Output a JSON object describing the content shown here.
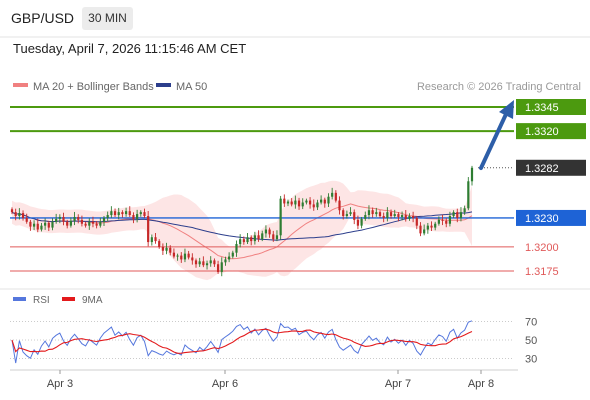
{
  "header": {
    "pair": "GBP/USD",
    "timeframe": "30 MIN",
    "datetime": "Tuesday, April 7, 2026 11:15:46 AM CET"
  },
  "legend": {
    "ma20": "MA 20 + Bollinger Bands",
    "ma50": "MA 50",
    "credit": "Research © 2026 Trading Central"
  },
  "colors": {
    "bull": "#2e7d32",
    "bear": "#c62828",
    "ma20": "#f08080",
    "ma50": "#2c3e8c",
    "bands": "#fde0e0",
    "target": "#4c9a0f",
    "pivot": "#1e63d6",
    "support": "#e05a5a",
    "current": "#333333",
    "rsi": "#5577dd",
    "rsi_ma": "#e31a1c",
    "arrow": "#2d5ea8"
  },
  "chart_data": [
    {
      "type": "candlestick",
      "title": "",
      "x_labels": [
        "Apr 3",
        "Apr 6",
        "Apr 7",
        "Apr 8"
      ],
      "ylim": [
        1.315,
        1.336
      ],
      "levels": [
        {
          "value": "1.3345",
          "kind": "target"
        },
        {
          "value": "1.3320",
          "kind": "target"
        },
        {
          "value": "1.3282",
          "kind": "current"
        },
        {
          "value": "1.3230",
          "kind": "pivot"
        },
        {
          "value": "1.3200",
          "kind": "support"
        },
        {
          "value": "1.3175",
          "kind": "support"
        }
      ],
      "closes": [
        1.3236,
        1.3232,
        1.3235,
        1.323,
        1.3226,
        1.3221,
        1.3224,
        1.3218,
        1.3222,
        1.3225,
        1.322,
        1.3226,
        1.3229,
        1.3231,
        1.3226,
        1.3222,
        1.3227,
        1.3231,
        1.3228,
        1.3224,
        1.3222,
        1.3226,
        1.3224,
        1.3222,
        1.3226,
        1.323,
        1.3233,
        1.3237,
        1.3233,
        1.3236,
        1.3234,
        1.3237,
        1.3233,
        1.3229,
        1.3234,
        1.3236,
        1.3232,
        1.3205,
        1.321,
        1.3206,
        1.32,
        1.3196,
        1.3199,
        1.3194,
        1.319,
        1.3191,
        1.3187,
        1.3193,
        1.3189,
        1.3186,
        1.3182,
        1.3185,
        1.3181,
        1.3183,
        1.3186,
        1.3182,
        1.3174,
        1.3184,
        1.3187,
        1.319,
        1.3194,
        1.3203,
        1.3208,
        1.3205,
        1.321,
        1.3206,
        1.3212,
        1.3208,
        1.3214,
        1.3218,
        1.3213,
        1.3208,
        1.3212,
        1.325,
        1.3245,
        1.3247,
        1.3244,
        1.3248,
        1.3242,
        1.3246,
        1.3248,
        1.3244,
        1.3241,
        1.3246,
        1.3249,
        1.3245,
        1.3252,
        1.3256,
        1.3248,
        1.3238,
        1.3232,
        1.3234,
        1.3236,
        1.3228,
        1.3222,
        1.3229,
        1.3233,
        1.3238,
        1.3234,
        1.3236,
        1.3232,
        1.323,
        1.3236,
        1.3232,
        1.3234,
        1.3231,
        1.3233,
        1.3229,
        1.3232,
        1.323,
        1.3222,
        1.3214,
        1.3218,
        1.3222,
        1.322,
        1.3224,
        1.3228,
        1.3227,
        1.3224,
        1.3232,
        1.3236,
        1.323,
        1.3236,
        1.324,
        1.3268,
        1.3282
      ],
      "series": [
        {
          "name": "MA 20 + Bollinger Bands"
        },
        {
          "name": "MA 50"
        }
      ]
    },
    {
      "type": "line",
      "title": "",
      "ylim": [
        20,
        80
      ],
      "y_ticks": [
        "70",
        "50",
        "30"
      ],
      "series": [
        {
          "name": "RSI"
        },
        {
          "name": "9MA"
        }
      ]
    }
  ]
}
